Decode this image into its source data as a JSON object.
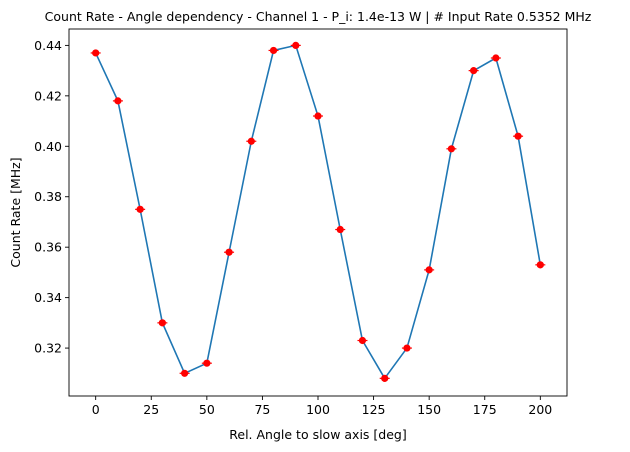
{
  "chart_data": {
    "type": "line",
    "title": "Count Rate - Angle dependency - Channel 1 - P_i: 1.4e-13 W | # Input Rate 0.5352 MHz",
    "xlabel": "Rel. Angle to slow axis [deg]",
    "ylabel": "Count Rate [MHz]",
    "xlim": [
      -12,
      212
    ],
    "ylim": [
      0.301,
      0.4465
    ],
    "xticks": [
      0,
      25,
      50,
      75,
      100,
      125,
      150,
      175,
      200
    ],
    "xtick_labels": [
      "0",
      "25",
      "50",
      "75",
      "100",
      "125",
      "150",
      "175",
      "200"
    ],
    "yticks": [
      0.32,
      0.34,
      0.36,
      0.38,
      0.4,
      0.42,
      0.44
    ],
    "ytick_labels": [
      "0.32",
      "0.34",
      "0.36",
      "0.38",
      "0.40",
      "0.42",
      "0.44"
    ],
    "grid": false,
    "line_color": "#1f77b4",
    "marker_color": "#ff0000",
    "series": [
      {
        "x": [
          0,
          10,
          20,
          30,
          40,
          50,
          60,
          70,
          80,
          90,
          100,
          110,
          120,
          130,
          140,
          150,
          160,
          170,
          180,
          190,
          200
        ],
        "values": [
          0.437,
          0.418,
          0.375,
          0.33,
          0.31,
          0.314,
          0.358,
          0.402,
          0.438,
          0.44,
          0.412,
          0.367,
          0.323,
          0.308,
          0.32,
          0.351,
          0.399,
          0.43,
          0.435,
          0.404,
          0.353
        ]
      }
    ]
  }
}
